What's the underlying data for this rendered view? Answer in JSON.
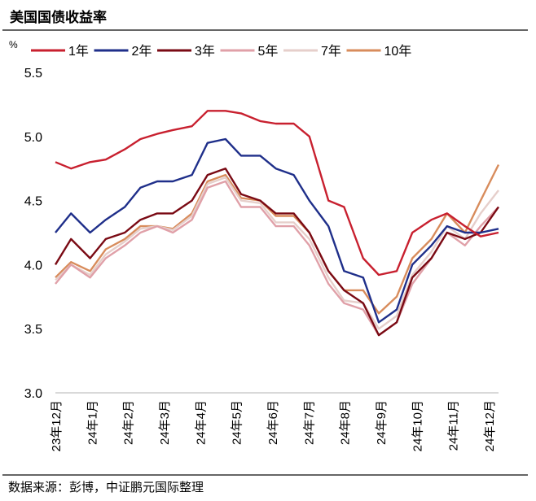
{
  "chart_data": {
    "type": "line",
    "title": "美国国债收益率",
    "ylabel": "%",
    "xlabel": "",
    "ylim": [
      3.0,
      5.5
    ],
    "yticks": [
      "5.5",
      "5.0",
      "4.5",
      "4.0",
      "3.5",
      "3.0"
    ],
    "ytick_values": [
      5.5,
      5.0,
      4.5,
      4.0,
      3.5,
      3.0
    ],
    "xtick_labels": [
      "23年12月",
      "24年1月",
      "24年2月",
      "24年3月",
      "24年4月",
      "24年5月",
      "24年6月",
      "24年7月",
      "24年8月",
      "24年9月",
      "24年10月",
      "24年11月",
      "24年12月"
    ],
    "x": [
      "2023-12-01",
      "2023-12-15",
      "2024-01-01",
      "2024-01-15",
      "2024-02-01",
      "2024-02-15",
      "2024-03-01",
      "2024-03-15",
      "2024-04-01",
      "2024-04-15",
      "2024-05-01",
      "2024-05-15",
      "2024-06-01",
      "2024-06-15",
      "2024-07-01",
      "2024-07-15",
      "2024-08-01",
      "2024-08-15",
      "2024-09-01",
      "2024-09-15",
      "2024-10-01",
      "2024-10-15",
      "2024-11-01",
      "2024-11-15",
      "2024-12-01",
      "2024-12-15",
      "2024-12-31"
    ],
    "legend_position": "top",
    "grid": false,
    "series": [
      {
        "name": "1年",
        "color": "#c8202f",
        "values": [
          4.8,
          4.75,
          4.8,
          4.82,
          4.9,
          4.98,
          5.02,
          5.05,
          5.08,
          5.2,
          5.2,
          5.18,
          5.12,
          5.1,
          5.1,
          5.0,
          4.5,
          4.45,
          4.05,
          3.92,
          3.95,
          4.25,
          4.35,
          4.4,
          4.3,
          4.22,
          4.25
        ]
      },
      {
        "name": "2年",
        "color": "#1f2f8a",
        "values": [
          4.25,
          4.4,
          4.25,
          4.35,
          4.45,
          4.6,
          4.65,
          4.65,
          4.7,
          4.95,
          4.98,
          4.85,
          4.85,
          4.75,
          4.7,
          4.5,
          4.3,
          3.95,
          3.9,
          3.55,
          3.65,
          4.0,
          4.15,
          4.3,
          4.25,
          4.25,
          4.28
        ]
      },
      {
        "name": "3年",
        "color": "#7a0a14",
        "values": [
          4.0,
          4.2,
          4.05,
          4.2,
          4.25,
          4.35,
          4.4,
          4.4,
          4.5,
          4.7,
          4.75,
          4.55,
          4.5,
          4.4,
          4.4,
          4.25,
          3.95,
          3.8,
          3.7,
          3.45,
          3.55,
          3.9,
          4.05,
          4.25,
          4.2,
          4.25,
          4.45
        ]
      },
      {
        "name": "5年",
        "color": "#e0a0a8",
        "values": [
          3.85,
          4.0,
          3.9,
          4.05,
          4.15,
          4.25,
          4.3,
          4.25,
          4.35,
          4.6,
          4.65,
          4.45,
          4.45,
          4.3,
          4.3,
          4.15,
          3.85,
          3.7,
          3.65,
          3.45,
          3.55,
          3.85,
          4.05,
          4.25,
          4.15,
          4.3,
          4.45
        ]
      },
      {
        "name": "7年",
        "color": "#e6cfcb",
        "values": [
          3.88,
          4.0,
          3.92,
          4.08,
          4.18,
          4.28,
          4.3,
          4.27,
          4.38,
          4.63,
          4.68,
          4.5,
          4.48,
          4.33,
          4.33,
          4.2,
          3.9,
          3.72,
          3.7,
          3.5,
          3.6,
          3.92,
          4.1,
          4.3,
          4.2,
          4.4,
          4.58
        ]
      },
      {
        "name": "10年",
        "color": "#d88c5c",
        "values": [
          3.9,
          4.02,
          3.95,
          4.12,
          4.2,
          4.3,
          4.3,
          4.28,
          4.4,
          4.65,
          4.7,
          4.52,
          4.5,
          4.38,
          4.38,
          4.25,
          3.95,
          3.8,
          3.8,
          3.62,
          3.75,
          4.05,
          4.2,
          4.4,
          4.25,
          4.5,
          4.78
        ]
      }
    ],
    "source": "数据来源：彭博，中证鹏元国际整理"
  }
}
